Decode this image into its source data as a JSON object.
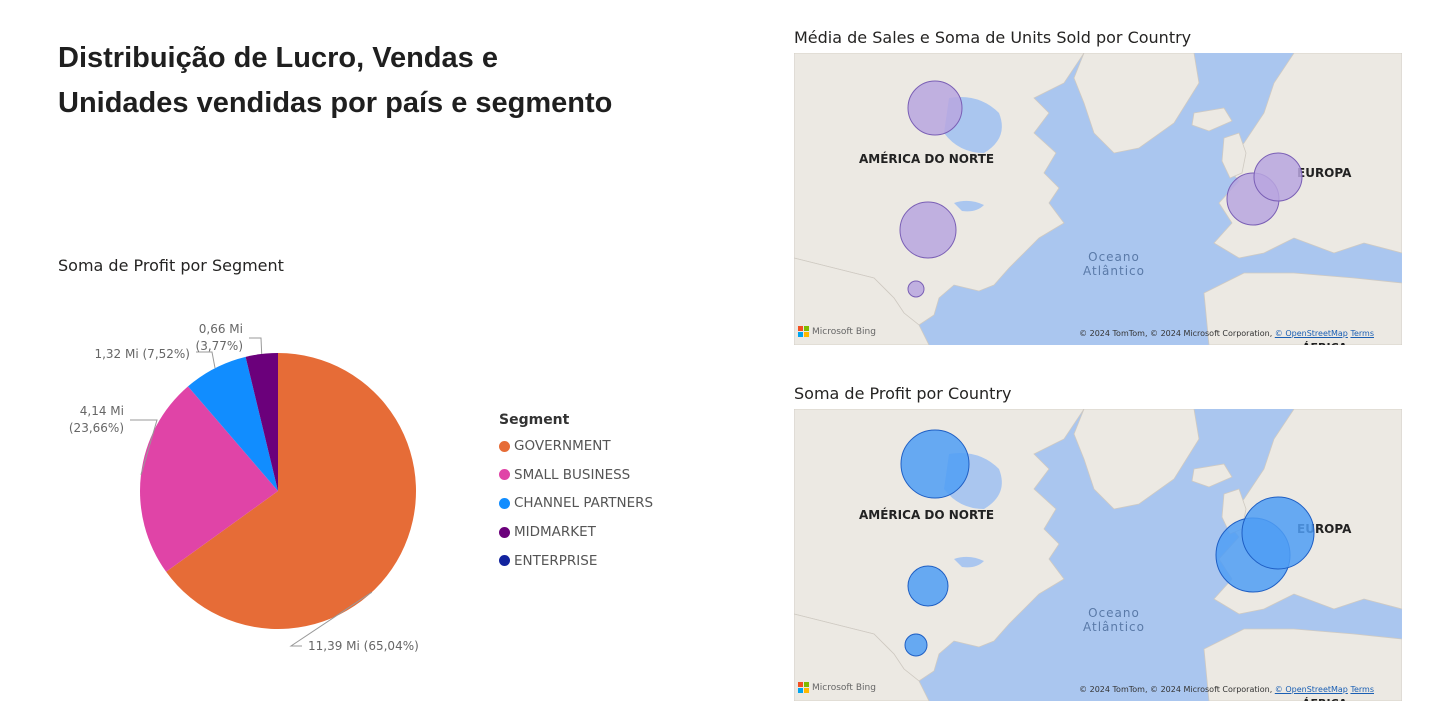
{
  "page": {
    "title_line1": "Distribuição de Lucro, Vendas e",
    "title_line2": "Unidades vendidas por país e segmento"
  },
  "pie": {
    "title": "Soma de Profit por Segment",
    "legend_title": "Segment"
  },
  "chart_data": [
    {
      "type": "pie",
      "title": "Soma de Profit por Segment",
      "legend_title": "Segment",
      "slices": [
        {
          "name": "GOVERNMENT",
          "value": 11.39,
          "pct": 65.04,
          "label": "11,39 Mi (65,04%)",
          "color": "#E66C37"
        },
        {
          "name": "SMALL BUSINESS",
          "value": 4.14,
          "pct": 23.66,
          "label_line1": "4,14 Mi",
          "label_line2": "(23,66%)",
          "color": "#E044A7"
        },
        {
          "name": "CHANNEL PARTNERS",
          "value": 1.32,
          "pct": 7.52,
          "label": "1,32 Mi (7,52%)",
          "color": "#118DFF"
        },
        {
          "name": "MIDMARKET",
          "value": 0.66,
          "pct": 3.77,
          "label_line1": "0,66 Mi",
          "label_line2": "(3,77%)",
          "color": "#6B007B"
        },
        {
          "name": "ENTERPRISE",
          "value": 0,
          "pct": 0,
          "color": "#12239E"
        }
      ],
      "legend": [
        "GOVERNMENT",
        "SMALL BUSINESS",
        "CHANNEL PARTNERS",
        "MIDMARKET",
        "ENTERPRISE"
      ]
    },
    {
      "type": "map-bubble",
      "title": "Média de Sales e Soma de Units Sold por Country",
      "bubble_color": "#b9a6df",
      "bubbles": [
        {
          "country": "Canada",
          "size": "large"
        },
        {
          "country": "United States of America",
          "size": "large"
        },
        {
          "country": "Mexico",
          "size": "small"
        },
        {
          "country": "France",
          "size": "large"
        },
        {
          "country": "Germany",
          "size": "large"
        }
      ]
    },
    {
      "type": "map-bubble",
      "title": "Soma de Profit por Country",
      "bubble_color": "#4f9ef5",
      "bubbles": [
        {
          "country": "Canada",
          "size": "large"
        },
        {
          "country": "United States of America",
          "size": "medium"
        },
        {
          "country": "Mexico",
          "size": "small"
        },
        {
          "country": "France",
          "size": "large"
        },
        {
          "country": "Germany",
          "size": "large"
        }
      ]
    }
  ],
  "maps": {
    "map1_title": "Média de Sales e Soma de Units Sold por Country",
    "map2_title": "Soma de Profit por Country",
    "label_na": "AMÉRICA DO NORTE",
    "label_eu": "EUROPA",
    "label_ocean1": "Oceano",
    "label_ocean2": "Atlântico",
    "label_africa": "ÁFRICA",
    "bing": "Microsoft Bing",
    "attrib_prefix": "© 2024 TomTom, © 2024 Microsoft Corporation, ",
    "attrib_osm": "© OpenStreetMap",
    "attrib_terms": "Terms"
  }
}
